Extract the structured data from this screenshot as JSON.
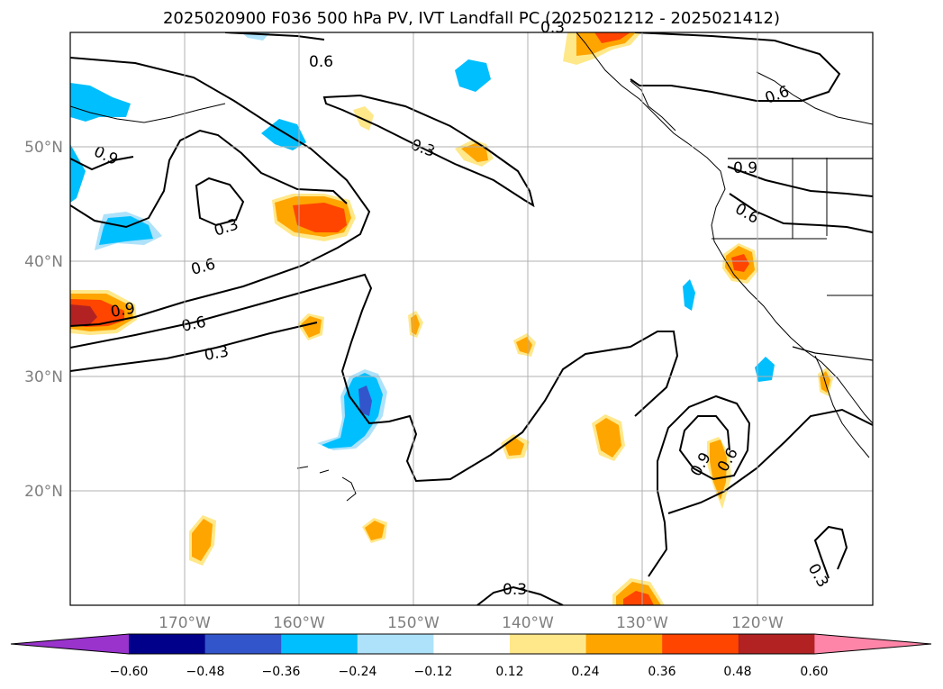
{
  "title": "2025020900 F036 500 hPa PV, IVT Landfall PC (2025021212 - 2025021412)",
  "map": {
    "lon_range": [
      -180,
      -110
    ],
    "lat_range": [
      10,
      60
    ],
    "x_ticks": [
      "170°W",
      "160°W",
      "150°W",
      "140°W",
      "130°W",
      "120°W"
    ],
    "y_ticks": [
      "50°N",
      "40°N",
      "30°N",
      "20°N"
    ],
    "grid": true
  },
  "contour_labels": [
    "0.6",
    "0.9",
    "0.3",
    "0.3",
    "0.9",
    "0.6",
    "0.3",
    "0.6",
    "0.6",
    "0.9",
    "0.3",
    "0.9",
    "0.6",
    "0.3",
    "0.3",
    "0.6"
  ],
  "colorbar": {
    "ticks": [
      "−0.60",
      "−0.48",
      "−0.36",
      "−0.24",
      "−0.12",
      "0.12",
      "0.24",
      "0.36",
      "0.48",
      "0.60"
    ],
    "colors": [
      "#9933cc",
      "#00008b",
      "#3355cc",
      "#00bfff",
      "#aee2fa",
      "#ffffff",
      "#ffe88a",
      "#ffa500",
      "#ff4500",
      "#b22222",
      "#ff85a8"
    ],
    "extend": "both"
  }
}
